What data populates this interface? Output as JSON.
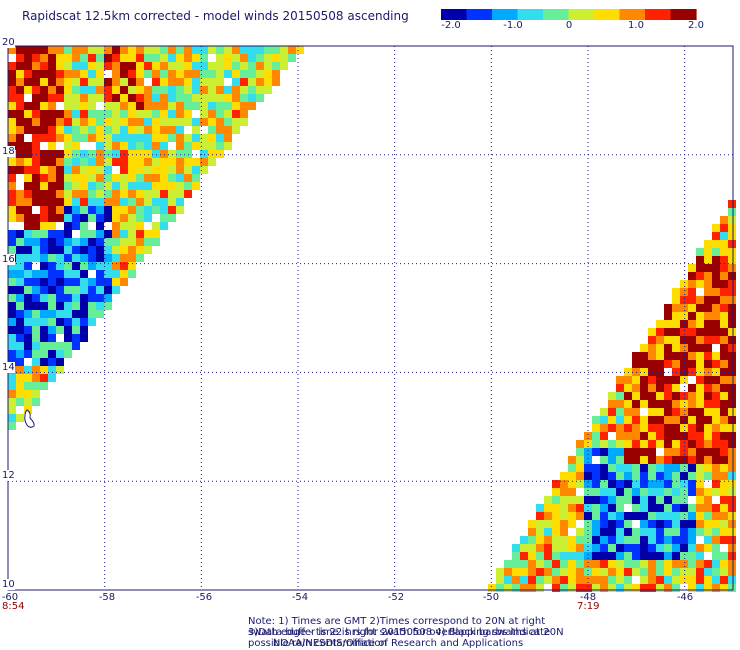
{
  "title": "Rapidscat 12.5km corrected - model winds 20150508 ascending",
  "colorbar": {
    "min": -2.0,
    "max": 2.0,
    "tick_labels": [
      "-2.0",
      "-1.0",
      "0",
      "1.0",
      "2.0"
    ],
    "colors": [
      "#0000aa",
      "#0033ff",
      "#00aaff",
      "#33ddee",
      "#66ee99",
      "#ccee33",
      "#ffdd00",
      "#ff8800",
      "#ff2200",
      "#990000"
    ]
  },
  "axes": {
    "lon_range": [
      -60,
      -45
    ],
    "lat_range": [
      10,
      20
    ],
    "x_tick_labels": [
      "-60",
      "-58",
      "-56",
      "-54",
      "-52",
      "-50",
      "-48",
      "-46"
    ],
    "y_tick_labels": [
      "20",
      "18",
      "16",
      "14",
      "12",
      "10"
    ],
    "grid": "dotted"
  },
  "swath_times": [
    "8:54",
    "7:19"
  ],
  "notes": [
    "Note: 1) Times are GMT 2)Times correspond to 20N at right swath edge - time is right swath for overlapping swaths at 20N",
    "3)Data buffer is 22 hrs for 20150508 4) Black barbs indicate possible rain contamination",
    "NOAA/NESDIS/Office of Research and Applications"
  ],
  "chart_data": {
    "type": "heatmap",
    "title": "Rapidscat 12.5km corrected - model winds 20150508 ascending",
    "xlabel": "",
    "ylabel": "",
    "xlim": [
      -60,
      -45
    ],
    "ylim": [
      10,
      20
    ],
    "value_range": [
      -2.0,
      2.0
    ],
    "swaths": [
      {
        "time": "8:54",
        "region": "upper-left",
        "dominant_values": "positive (red/orange) near -60 to -58 at 15N-20N; negative (blue) near 14N-16N"
      },
      {
        "time": "7:19",
        "region": "lower-right",
        "dominant_values": "positive (red) near -47 to -45 at 13N-17N; negative (blue) near 10.5N-12N"
      }
    ]
  }
}
